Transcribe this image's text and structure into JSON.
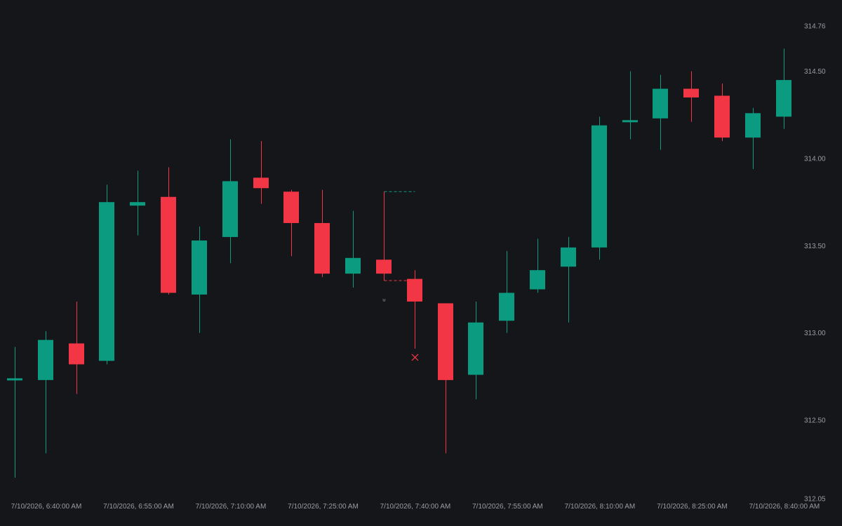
{
  "chart_data": {
    "type": "candlestick",
    "colors": {
      "background": "#151619",
      "up": "#0b9b80",
      "down": "#f23645",
      "text": "#9a9ca3"
    },
    "x_axis": {
      "tick_labels": [
        "7/10/2026, 6:40:00 AM",
        "7/10/2026, 6:55:00 AM",
        "7/10/2026, 7:10:00 AM",
        "7/10/2026, 7:25:00 AM",
        "7/10/2026, 7:40:00 AM",
        "7/10/2026, 7:55:00 AM",
        "7/10/2026, 8:10:00 AM",
        "7/10/2026, 8:25:00 AM",
        "7/10/2026, 8:40:00 AM"
      ],
      "candle_interval": "5 min"
    },
    "y_axis": {
      "position": "right",
      "range": [
        312.05,
        314.76
      ],
      "tick_labels": [
        "312.05",
        "312.50",
        "313.00",
        "313.50",
        "314.00",
        "314.50",
        "314.76"
      ],
      "tick_values": [
        312.05,
        312.5,
        313.0,
        313.5,
        314.0,
        314.5,
        314.76
      ]
    },
    "candles": [
      {
        "time": "6:40",
        "open": 312.73,
        "high": 312.92,
        "low": 312.17,
        "close": 312.74
      },
      {
        "time": "6:45",
        "open": 312.73,
        "high": 313.01,
        "low": 312.31,
        "close": 312.96
      },
      {
        "time": "6:50",
        "open": 312.94,
        "high": 313.18,
        "low": 312.65,
        "close": 312.82
      },
      {
        "time": "6:55",
        "open": 312.84,
        "high": 313.85,
        "low": 312.82,
        "close": 313.75
      },
      {
        "time": "7:00",
        "open": 313.73,
        "high": 313.93,
        "low": 313.56,
        "close": 313.75
      },
      {
        "time": "7:05",
        "open": 313.78,
        "high": 313.95,
        "low": 313.22,
        "close": 313.23
      },
      {
        "time": "7:10",
        "open": 313.22,
        "high": 313.61,
        "low": 313.0,
        "close": 313.53
      },
      {
        "time": "7:15",
        "open": 313.55,
        "high": 314.11,
        "low": 313.4,
        "close": 313.87
      },
      {
        "time": "7:20",
        "open": 313.89,
        "high": 314.1,
        "low": 313.74,
        "close": 313.83
      },
      {
        "time": "7:25",
        "open": 313.81,
        "high": 313.82,
        "low": 313.44,
        "close": 313.63
      },
      {
        "time": "7:30",
        "open": 313.63,
        "high": 313.82,
        "low": 313.32,
        "close": 313.34
      },
      {
        "time": "7:35",
        "open": 313.34,
        "high": 313.7,
        "low": 313.26,
        "close": 313.43
      },
      {
        "time": "7:40",
        "open": 313.42,
        "high": 313.81,
        "low": 313.3,
        "close": 313.34
      },
      {
        "time": "7:45",
        "open": 313.31,
        "high": 313.36,
        "low": 312.91,
        "close": 313.18
      },
      {
        "time": "7:50",
        "open": 313.17,
        "high": 313.17,
        "low": 312.31,
        "close": 312.73
      },
      {
        "time": "7:55",
        "open": 312.76,
        "high": 313.18,
        "low": 312.62,
        "close": 313.06
      },
      {
        "time": "8:00",
        "open": 313.07,
        "high": 313.47,
        "low": 313.0,
        "close": 313.23
      },
      {
        "time": "8:05",
        "open": 313.25,
        "high": 313.54,
        "low": 313.23,
        "close": 313.36
      },
      {
        "time": "8:10",
        "open": 313.38,
        "high": 313.55,
        "low": 313.06,
        "close": 313.49
      },
      {
        "time": "8:15",
        "open": 313.49,
        "high": 314.24,
        "low": 313.42,
        "close": 314.19
      },
      {
        "time": "8:20",
        "open": 314.22,
        "high": 314.5,
        "low": 314.11,
        "close": 314.22
      },
      {
        "time": "8:25",
        "open": 314.23,
        "high": 314.48,
        "low": 314.05,
        "close": 314.4
      },
      {
        "time": "8:30",
        "open": 314.4,
        "high": 314.5,
        "low": 314.21,
        "close": 314.35
      },
      {
        "time": "8:35",
        "open": 314.36,
        "high": 314.43,
        "low": 314.1,
        "close": 314.12
      },
      {
        "time": "8:40",
        "open": 314.12,
        "high": 314.29,
        "low": 313.94,
        "close": 314.26
      },
      {
        "time": "8:45",
        "open": 314.24,
        "high": 314.63,
        "low": 314.17,
        "close": 314.45
      }
    ],
    "annotations": [
      {
        "type": "dashed-level",
        "color": "up",
        "at_candle": 12,
        "price": 313.81
      },
      {
        "type": "dashed-level",
        "color": "down",
        "at_candle": 12,
        "price": 313.3
      },
      {
        "type": "text-marker",
        "text": "M",
        "at_candle": 12,
        "price": 313.18
      },
      {
        "type": "cross-marker",
        "color": "down",
        "at_candle": 13,
        "price": 312.86
      }
    ]
  }
}
